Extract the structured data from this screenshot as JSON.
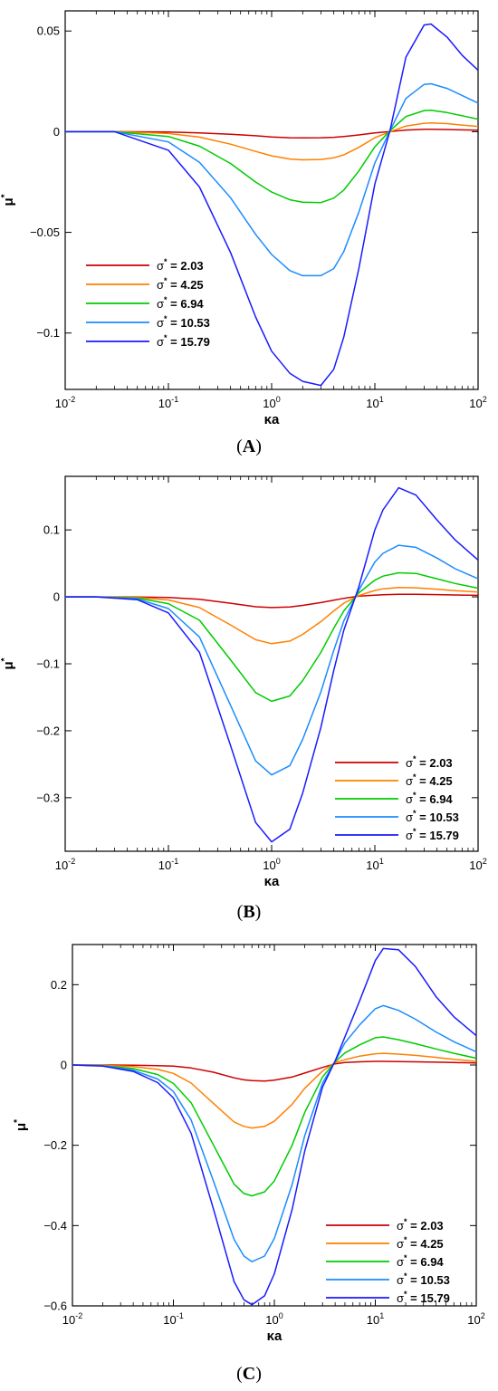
{
  "chart_data": [
    {
      "type": "line",
      "panel": "A",
      "xscale": "log",
      "xlim": [
        0.01,
        100
      ],
      "ylim": [
        -0.128,
        0.06
      ],
      "xlabel": "κa",
      "ylabel": "μ*",
      "xtick_labels": [
        "10-2",
        "10-1",
        "100",
        "101",
        "102"
      ],
      "yticks": [
        0.05,
        0,
        -0.05,
        -0.1
      ],
      "ytick_labels": [
        "0.05",
        "0",
        "-0.05",
        "-0.1"
      ],
      "legend_position": "lower-left",
      "x": [
        0.01,
        0.03,
        0.1,
        0.2,
        0.4,
        0.7,
        1,
        1.5,
        2,
        3,
        4,
        5,
        7,
        10,
        14,
        20,
        30,
        35,
        50,
        70,
        100
      ],
      "series": [
        {
          "name": "σ* = 2.03",
          "color": "#cc0000",
          "values": [
            0,
            0,
            -0.0002,
            -0.0006,
            -0.0013,
            -0.002,
            -0.0026,
            -0.003,
            -0.0031,
            -0.003,
            -0.0028,
            -0.0024,
            -0.0016,
            -0.0006,
            0.0001,
            0.0008,
            0.0012,
            0.0012,
            0.0011,
            0.0009,
            0.0007
          ]
        },
        {
          "name": "σ* = 4.25",
          "color": "#ff8000",
          "values": [
            0,
            0,
            -0.0009,
            -0.0027,
            -0.0062,
            -0.0098,
            -0.012,
            -0.0136,
            -0.014,
            -0.0138,
            -0.013,
            -0.0115,
            -0.0078,
            -0.003,
            0,
            0.0028,
            0.0042,
            0.0043,
            0.004,
            0.0033,
            0.0026
          ]
        },
        {
          "name": "σ* = 6.94",
          "color": "#00cc00",
          "values": [
            0,
            0,
            -0.0024,
            -0.0072,
            -0.0158,
            -0.025,
            -0.03,
            -0.0338,
            -0.035,
            -0.0352,
            -0.033,
            -0.029,
            -0.0195,
            -0.0075,
            0.0005,
            0.0075,
            0.0105,
            0.0106,
            0.0095,
            0.0079,
            0.0062
          ]
        },
        {
          "name": "σ* = 10.53",
          "color": "#1a8cff",
          "values": [
            0,
            0,
            -0.0051,
            -0.0152,
            -0.0328,
            -0.051,
            -0.061,
            -0.069,
            -0.0715,
            -0.0715,
            -0.068,
            -0.0595,
            -0.04,
            -0.0155,
            0.0005,
            0.0165,
            0.0235,
            0.0238,
            0.0215,
            0.018,
            0.0142
          ]
        },
        {
          "name": "σ* = 15.79",
          "color": "#1a1aff",
          "values": [
            0,
            0,
            -0.0092,
            -0.0275,
            -0.06,
            -0.092,
            -0.109,
            -0.12,
            -0.124,
            -0.126,
            -0.118,
            -0.102,
            -0.068,
            -0.026,
            0.0005,
            0.037,
            0.053,
            0.0535,
            0.047,
            0.038,
            0.0305
          ]
        }
      ]
    },
    {
      "type": "line",
      "panel": "B",
      "xscale": "log",
      "xlim": [
        0.01,
        100
      ],
      "ylim": [
        -0.38,
        0.18
      ],
      "xlabel": "κa",
      "ylabel": "μ*",
      "xtick_labels": [
        "10-2",
        "10-1",
        "100",
        "101",
        "102"
      ],
      "yticks": [
        0.1,
        0,
        -0.1,
        -0.2,
        -0.3
      ],
      "ytick_labels": [
        "0.1",
        "0",
        "-0.1",
        "-0.2",
        "-0.3"
      ],
      "legend_position": "lower-right",
      "x": [
        0.01,
        0.02,
        0.05,
        0.1,
        0.2,
        0.4,
        0.7,
        1,
        1.5,
        2,
        3,
        4,
        5,
        7,
        10,
        12,
        17,
        25,
        40,
        60,
        100
      ],
      "series": [
        {
          "name": "σ* = 2.03",
          "color": "#cc0000",
          "values": [
            0,
            0,
            -0.0002,
            -0.001,
            -0.0037,
            -0.0095,
            -0.0148,
            -0.016,
            -0.0152,
            -0.0128,
            -0.0085,
            -0.005,
            -0.0022,
            0.001,
            0.0025,
            0.0032,
            0.0038,
            0.0038,
            0.0034,
            0.0028,
            0.0022
          ]
        },
        {
          "name": "σ* = 4.25",
          "color": "#ff8000",
          "values": [
            0,
            0,
            -0.0008,
            -0.0046,
            -0.016,
            -0.042,
            -0.064,
            -0.07,
            -0.066,
            -0.056,
            -0.037,
            -0.021,
            -0.0095,
            0.002,
            0.0095,
            0.012,
            0.014,
            0.0135,
            0.0115,
            0.0093,
            0.0072
          ]
        },
        {
          "name": "σ* = 6.94",
          "color": "#00cc00",
          "values": [
            0,
            0,
            -0.0018,
            -0.0102,
            -0.035,
            -0.094,
            -0.143,
            -0.156,
            -0.148,
            -0.125,
            -0.083,
            -0.047,
            -0.021,
            0.006,
            0.025,
            0.031,
            0.036,
            0.035,
            0.027,
            0.02,
            0.013
          ]
        },
        {
          "name": "σ* = 10.53",
          "color": "#1a8cff",
          "values": [
            0,
            0,
            -0.0031,
            -0.0175,
            -0.06,
            -0.162,
            -0.245,
            -0.266,
            -0.252,
            -0.213,
            -0.142,
            -0.08,
            -0.036,
            0.01,
            0.052,
            0.065,
            0.077,
            0.074,
            0.058,
            0.042,
            0.027
          ]
        },
        {
          "name": "σ* = 15.79",
          "color": "#1a1aff",
          "values": [
            0,
            0,
            -0.0042,
            -0.024,
            -0.083,
            -0.222,
            -0.337,
            -0.366,
            -0.347,
            -0.293,
            -0.195,
            -0.11,
            -0.05,
            0.015,
            0.1,
            0.13,
            0.163,
            0.152,
            0.115,
            0.085,
            0.055
          ]
        }
      ]
    },
    {
      "type": "line",
      "panel": "C",
      "xscale": "log",
      "xlim": [
        0.01,
        100
      ],
      "ylim": [
        -0.6,
        0.3
      ],
      "xlabel": "κa",
      "ylabel": "μ*",
      "xtick_labels": [
        "10-2",
        "10-1",
        "100",
        "101",
        "102"
      ],
      "yticks": [
        0.2,
        0,
        -0.2,
        -0.4,
        -0.6
      ],
      "ytick_labels": [
        "0.2",
        "0",
        "-0.2",
        "-0.4",
        "-0.6"
      ],
      "legend_position": "lower-right",
      "x": [
        0.01,
        0.02,
        0.04,
        0.07,
        0.1,
        0.15,
        0.25,
        0.4,
        0.5,
        0.6,
        0.8,
        1,
        1.5,
        2,
        3,
        4,
        5,
        7,
        10,
        12,
        17,
        25,
        40,
        60,
        100
      ],
      "series": [
        {
          "name": "σ* = 2.03",
          "color": "#cc0000",
          "values": [
            0,
            0,
            -0.0005,
            -0.0015,
            -0.003,
            -0.0075,
            -0.018,
            -0.032,
            -0.037,
            -0.039,
            -0.04,
            -0.038,
            -0.03,
            -0.02,
            -0.006,
            0.003,
            0.006,
            0.008,
            0.009,
            0.009,
            0.0085,
            0.008,
            0.007,
            0.006,
            0.005
          ]
        },
        {
          "name": "σ* = 4.25",
          "color": "#ff8000",
          "values": [
            0,
            -0.0006,
            -0.004,
            -0.011,
            -0.021,
            -0.045,
            -0.096,
            -0.142,
            -0.153,
            -0.157,
            -0.153,
            -0.14,
            -0.098,
            -0.058,
            -0.015,
            0.006,
            0.013,
            0.022,
            0.028,
            0.029,
            0.027,
            0.024,
            0.019,
            0.014,
            0.009
          ]
        },
        {
          "name": "σ* = 6.94",
          "color": "#00cc00",
          "values": [
            0,
            -0.0015,
            -0.009,
            -0.024,
            -0.046,
            -0.094,
            -0.2,
            -0.297,
            -0.32,
            -0.326,
            -0.316,
            -0.289,
            -0.2,
            -0.118,
            -0.03,
            0.008,
            0.03,
            0.05,
            0.068,
            0.07,
            0.063,
            0.053,
            0.04,
            0.029,
            0.017
          ]
        },
        {
          "name": "σ* = 10.53",
          "color": "#1a8cff",
          "values": [
            0,
            -0.0021,
            -0.013,
            -0.035,
            -0.066,
            -0.137,
            -0.29,
            -0.435,
            -0.476,
            -0.49,
            -0.476,
            -0.432,
            -0.298,
            -0.176,
            -0.045,
            0.009,
            0.055,
            0.1,
            0.14,
            0.148,
            0.136,
            0.114,
            0.082,
            0.058,
            0.033
          ]
        },
        {
          "name": "σ* = 15.79",
          "color": "#1a1aff",
          "values": [
            0,
            -0.0026,
            -0.016,
            -0.044,
            -0.082,
            -0.17,
            -0.36,
            -0.54,
            -0.585,
            -0.597,
            -0.575,
            -0.52,
            -0.36,
            -0.214,
            -0.055,
            0.01,
            0.07,
            0.16,
            0.26,
            0.29,
            0.287,
            0.245,
            0.17,
            0.12,
            0.073
          ]
        }
      ]
    }
  ],
  "panel_labels": [
    {
      "open": "(",
      "letter": "A",
      "close": ")"
    },
    {
      "open": "(",
      "letter": "B",
      "close": ")"
    },
    {
      "open": "(",
      "letter": "C",
      "close": ")"
    }
  ]
}
